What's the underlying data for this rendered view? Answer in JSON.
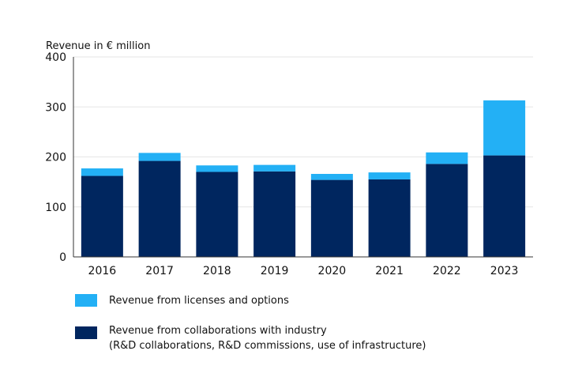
{
  "chart_data": {
    "type": "bar",
    "stacked": true,
    "ylabel": "Revenue in € million",
    "ylim": [
      0,
      400
    ],
    "yticks": [
      0,
      100,
      200,
      300,
      400
    ],
    "categories": [
      "2016",
      "2017",
      "2018",
      "2019",
      "2020",
      "2021",
      "2022",
      "2023"
    ],
    "series": [
      {
        "name": "Revenue from collaborations with industry\n(R&D collaborations, R&D commissions, use of infrastructure)",
        "color": "#00265f",
        "values": [
          162,
          192,
          170,
          171,
          154,
          155,
          186,
          203
        ]
      },
      {
        "name": "Revenue from licenses and options",
        "color": "#23b0f5",
        "values": [
          15,
          16,
          13,
          13,
          12,
          14,
          23,
          110
        ]
      }
    ],
    "grid": true,
    "legend_position": "bottom-left"
  },
  "legend": {
    "licenses_label": "Revenue from licenses and options",
    "collab_label_line1": "Revenue from collaborations with industry",
    "collab_label_line2": "(R&D collaborations, R&D commissions, use of infrastructure)"
  }
}
